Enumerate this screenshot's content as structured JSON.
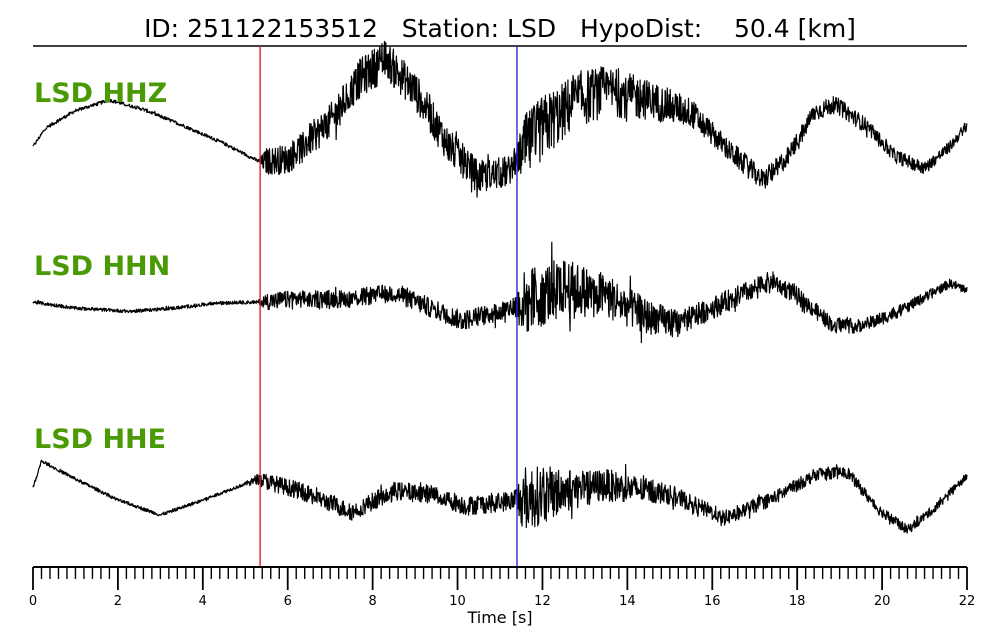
{
  "header": {
    "id_label": "ID:",
    "id_value": "251122153512",
    "station_label": "Station:",
    "station_value": "LSD",
    "hypodist_label": "HypoDist:",
    "hypodist_value": "50.4",
    "hypodist_unit": "[km]"
  },
  "chart_data": {
    "type": "line",
    "xlabel": "Time [s]",
    "xlim": [
      0,
      22
    ],
    "x_major_ticks": [
      0,
      2,
      4,
      6,
      8,
      10,
      12,
      14,
      16,
      18,
      20,
      22
    ],
    "x_minor_tick_step": 0.2,
    "grid": false,
    "colors": {
      "trace": "#000000",
      "label": "#4a9a06",
      "p_pick": "#e02020",
      "s_pick": "#2a2ad8"
    },
    "picks": [
      {
        "phase": "P",
        "time": 5.35
      },
      {
        "phase": "S",
        "time": 11.4
      }
    ],
    "series": [
      {
        "name": "LSD HHZ",
        "envelope": [
          [
            0.0,
            0.05
          ],
          [
            1.8,
            0.05
          ],
          [
            5.3,
            0.05
          ],
          [
            5.5,
            0.4
          ],
          [
            8.0,
            0.6
          ],
          [
            11.4,
            0.45
          ],
          [
            11.6,
            1.0
          ],
          [
            13.5,
            0.75
          ],
          [
            16.0,
            0.35
          ],
          [
            22.0,
            0.15
          ]
        ],
        "waveform": [
          [
            0.0,
            -0.3
          ],
          [
            0.3,
            0.0
          ],
          [
            1.0,
            0.28
          ],
          [
            1.8,
            0.45
          ],
          [
            2.6,
            0.3
          ],
          [
            3.5,
            0.05
          ],
          [
            4.5,
            -0.25
          ],
          [
            5.35,
            -0.55
          ],
          [
            6.0,
            -0.5
          ],
          [
            7.0,
            0.1
          ],
          [
            7.7,
            0.8
          ],
          [
            8.3,
            1.1
          ],
          [
            9.0,
            0.6
          ],
          [
            9.8,
            -0.3
          ],
          [
            10.5,
            -0.8
          ],
          [
            11.2,
            -0.7
          ],
          [
            11.5,
            -0.4
          ],
          [
            12.0,
            0.0
          ],
          [
            12.8,
            0.45
          ],
          [
            13.5,
            0.6
          ],
          [
            14.5,
            0.45
          ],
          [
            15.5,
            0.25
          ],
          [
            16.3,
            -0.3
          ],
          [
            17.2,
            -0.85
          ],
          [
            17.8,
            -0.45
          ],
          [
            18.4,
            0.25
          ],
          [
            18.9,
            0.38
          ],
          [
            19.6,
            0.05
          ],
          [
            20.3,
            -0.45
          ],
          [
            21.0,
            -0.65
          ],
          [
            21.6,
            -0.3
          ],
          [
            22.0,
            0.05
          ]
        ]
      },
      {
        "name": "LSD HHN",
        "envelope": [
          [
            0.0,
            0.05
          ],
          [
            5.3,
            0.05
          ],
          [
            5.5,
            0.25
          ],
          [
            11.3,
            0.3
          ],
          [
            11.6,
            1.0
          ],
          [
            13.0,
            0.75
          ],
          [
            15.5,
            0.35
          ],
          [
            22.0,
            0.12
          ]
        ],
        "waveform": [
          [
            0.0,
            0.0
          ],
          [
            1.0,
            -0.1
          ],
          [
            2.3,
            -0.15
          ],
          [
            3.3,
            -0.1
          ],
          [
            4.3,
            -0.02
          ],
          [
            5.3,
            0.0
          ],
          [
            6.2,
            0.05
          ],
          [
            7.4,
            0.05
          ],
          [
            8.5,
            0.15
          ],
          [
            9.2,
            -0.05
          ],
          [
            10.1,
            -0.3
          ],
          [
            11.0,
            -0.15
          ],
          [
            11.4,
            -0.05
          ],
          [
            12.5,
            0.25
          ],
          [
            13.5,
            0.1
          ],
          [
            14.5,
            -0.25
          ],
          [
            15.2,
            -0.35
          ],
          [
            16.3,
            0.0
          ],
          [
            17.4,
            0.35
          ],
          [
            18.0,
            0.1
          ],
          [
            18.8,
            -0.35
          ],
          [
            19.5,
            -0.4
          ],
          [
            20.4,
            -0.15
          ],
          [
            21.6,
            0.3
          ],
          [
            22.0,
            0.2
          ]
        ]
      },
      {
        "name": "LSD HHE",
        "envelope": [
          [
            0.0,
            0.05
          ],
          [
            5.0,
            0.05
          ],
          [
            5.5,
            0.25
          ],
          [
            11.3,
            0.3
          ],
          [
            11.6,
            1.0
          ],
          [
            13.0,
            0.55
          ],
          [
            15.5,
            0.25
          ],
          [
            22.0,
            0.12
          ]
        ],
        "waveform": [
          [
            0.0,
            -0.1
          ],
          [
            0.2,
            0.35
          ],
          [
            1.0,
            0.05
          ],
          [
            2.0,
            -0.3
          ],
          [
            3.0,
            -0.55
          ],
          [
            4.0,
            -0.3
          ],
          [
            5.3,
            0.05
          ],
          [
            6.3,
            -0.15
          ],
          [
            7.5,
            -0.5
          ],
          [
            8.5,
            -0.15
          ],
          [
            9.4,
            -0.2
          ],
          [
            10.2,
            -0.4
          ],
          [
            11.4,
            -0.3
          ],
          [
            12.5,
            -0.15
          ],
          [
            13.5,
            -0.05
          ],
          [
            15.0,
            -0.2
          ],
          [
            16.3,
            -0.6
          ],
          [
            17.5,
            -0.25
          ],
          [
            18.5,
            0.15
          ],
          [
            19.2,
            0.15
          ],
          [
            19.9,
            -0.45
          ],
          [
            20.6,
            -0.8
          ],
          [
            21.3,
            -0.4
          ],
          [
            22.0,
            0.1
          ]
        ]
      }
    ]
  }
}
